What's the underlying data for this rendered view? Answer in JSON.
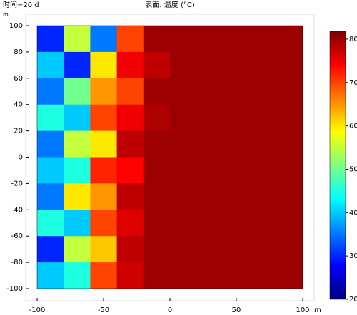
{
  "chart_data": {
    "type": "heatmap",
    "title": "表面: 温度 (°C)",
    "annotation": "时间=20 d",
    "x_unit": "m",
    "y_unit": "m",
    "x": [
      -90,
      -70,
      -50,
      -30,
      -10,
      10,
      30,
      50,
      70,
      90
    ],
    "y": [
      90,
      70,
      50,
      30,
      10,
      -10,
      -30,
      -50,
      -70,
      -90
    ],
    "z": [
      [
        30,
        55,
        35,
        70,
        80,
        80,
        80,
        80,
        80,
        80
      ],
      [
        40,
        30,
        60,
        75,
        78,
        80,
        80,
        80,
        80,
        80
      ],
      [
        35,
        50,
        65,
        70,
        80,
        80,
        80,
        80,
        80,
        80
      ],
      [
        45,
        40,
        70,
        75,
        79,
        80,
        80,
        80,
        80,
        80
      ],
      [
        35,
        55,
        60,
        78,
        80,
        80,
        80,
        80,
        80,
        80
      ],
      [
        40,
        45,
        72,
        74,
        80,
        80,
        80,
        80,
        80,
        80
      ],
      [
        35,
        60,
        65,
        78,
        80,
        80,
        80,
        80,
        80,
        80
      ],
      [
        45,
        40,
        70,
        76,
        80,
        80,
        80,
        80,
        80,
        80
      ],
      [
        30,
        55,
        62,
        78,
        80,
        80,
        80,
        80,
        80,
        80
      ],
      [
        40,
        45,
        70,
        77,
        80,
        80,
        80,
        80,
        80,
        80
      ]
    ],
    "xlim": [
      -100,
      100
    ],
    "xticks": [
      -100,
      -50,
      0,
      50,
      100
    ],
    "ylim": [
      -100,
      100
    ],
    "yticks": [
      -100,
      -80,
      -60,
      -40,
      -20,
      0,
      20,
      40,
      60,
      80,
      100
    ],
    "clim": [
      20,
      81.8
    ],
    "cticks": [
      20,
      30,
      40,
      50,
      60,
      70,
      80
    ],
    "colormap": [
      "#00007f",
      "#0000ff",
      "#007fff",
      "#00ffff",
      "#7fff7f",
      "#ffff00",
      "#ff7f00",
      "#ff0000",
      "#7f0000"
    ]
  }
}
